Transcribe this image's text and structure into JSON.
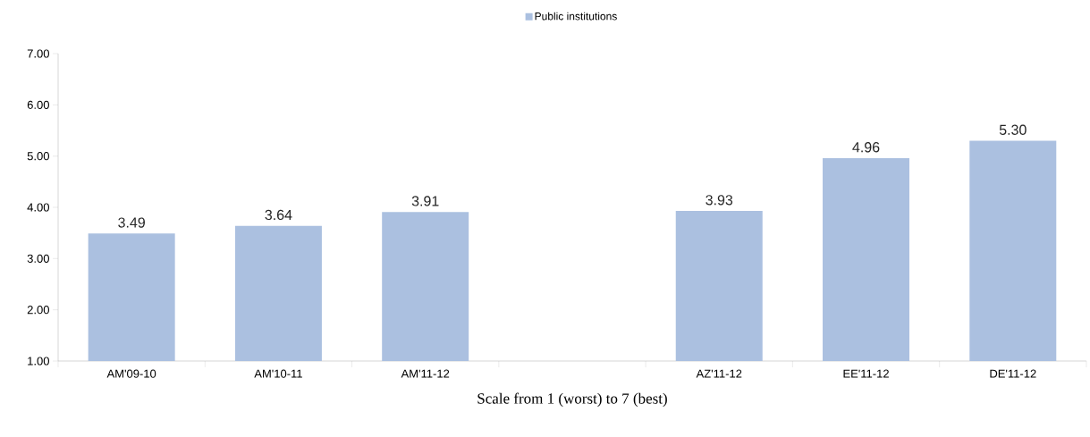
{
  "chart_data": {
    "type": "bar",
    "categories": [
      "AM'09-10",
      "AM'10-11",
      "AM'11-12",
      null,
      "AZ'11-12",
      "EE'11-12",
      "DE'11-12"
    ],
    "series": [
      {
        "name": "Public institutions",
        "color": "#abc0e0",
        "values": [
          3.49,
          3.64,
          3.91,
          null,
          3.93,
          4.96,
          5.3
        ],
        "value_labels": [
          "3.49",
          "3.64",
          "3.91",
          null,
          "3.93",
          "4.96",
          "5.30"
        ]
      }
    ],
    "xlabel": "Scale from 1 (worst) to 7 (best)",
    "ylim": [
      1,
      7
    ],
    "yticks": [
      {
        "value": 1,
        "label": "1.00"
      },
      {
        "value": 2,
        "label": "2.00"
      },
      {
        "value": 3,
        "label": "3.00"
      },
      {
        "value": 4,
        "label": "4.00"
      },
      {
        "value": 5,
        "label": "5.00"
      },
      {
        "value": 6,
        "label": "6.00"
      },
      {
        "value": 7,
        "label": "7.00"
      }
    ],
    "legend": "top",
    "grid": false
  }
}
